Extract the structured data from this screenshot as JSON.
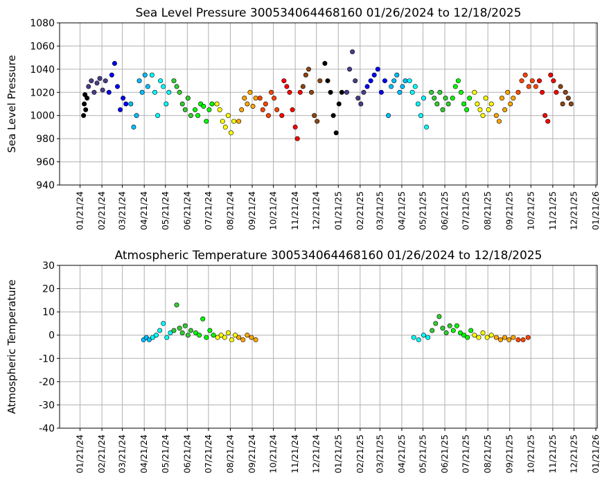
{
  "chart_data": [
    {
      "type": "scatter",
      "title": "Sea Level Pressure 300534064468160  01/26/2024 to 12/18/2025",
      "y_label": "Sea Level Pressure",
      "xlim": [
        "12/23/23",
        "01/23/26"
      ],
      "xticks": [
        "01/21/24",
        "02/21/24",
        "03/21/24",
        "04/21/24",
        "05/21/24",
        "06/21/24",
        "07/21/24",
        "08/21/24",
        "09/21/24",
        "10/21/24",
        "11/21/24",
        "12/21/24",
        "01/21/25",
        "02/21/25",
        "03/21/25",
        "04/21/25",
        "05/21/25",
        "06/21/25",
        "07/21/25",
        "08/21/25",
        "09/21/25",
        "10/21/25",
        "11/21/25",
        "12/21/25",
        "01/21/26"
      ],
      "ylim": [
        940,
        1080
      ],
      "yticks": [
        940,
        960,
        980,
        1000,
        1020,
        1040,
        1060,
        1080
      ],
      "grid": true,
      "series": [
        {
          "color": "#000000",
          "x": [
            "01/26/24",
            "01/27/24",
            "01/28/24",
            "01/29/24",
            "01/31/24"
          ],
          "values": [
            1000,
            1010,
            1018,
            1005,
            1015
          ]
        },
        {
          "color": "#483d8b",
          "x": [
            "02/02/24",
            "02/06/24",
            "02/10/24",
            "02/14/24",
            "02/18/24",
            "02/22/24",
            "02/26/24"
          ],
          "values": [
            1025,
            1030,
            1020,
            1028,
            1032,
            1022,
            1030
          ]
        },
        {
          "color": "#0000ff",
          "x": [
            "03/02/24",
            "03/06/24",
            "03/10/24",
            "03/14/24",
            "03/18/24",
            "03/22/24",
            "03/26/24"
          ],
          "values": [
            1020,
            1035,
            1045,
            1025,
            1005,
            1015,
            1010
          ]
        },
        {
          "color": "#00bfff",
          "x": [
            "04/02/24",
            "04/06/24",
            "04/10/24",
            "04/14/24",
            "04/18/24",
            "04/22/24",
            "04/26/24"
          ],
          "values": [
            1010,
            990,
            1000,
            1030,
            1020,
            1035,
            1025
          ]
        },
        {
          "color": "#00ffff",
          "x": [
            "05/02/24",
            "05/06/24",
            "05/10/24",
            "05/14/24",
            "05/18/24",
            "05/22/24",
            "05/26/24"
          ],
          "values": [
            1035,
            1020,
            1000,
            1030,
            1025,
            1010,
            1020
          ]
        },
        {
          "color": "#32cd32",
          "x": [
            "06/02/24",
            "06/06/24",
            "06/10/24",
            "06/14/24",
            "06/18/24",
            "06/22/24",
            "06/26/24"
          ],
          "values": [
            1030,
            1025,
            1020,
            1010,
            1005,
            1015,
            1000
          ]
        },
        {
          "color": "#00ff00",
          "x": [
            "07/02/24",
            "07/06/24",
            "07/10/24",
            "07/14/24",
            "07/18/24",
            "07/22/24",
            "07/26/24"
          ],
          "values": [
            1005,
            1000,
            1010,
            1008,
            995,
            1005,
            1010
          ]
        },
        {
          "color": "#ffff00",
          "x": [
            "08/02/24",
            "08/06/24",
            "08/10/24",
            "08/14/24",
            "08/18/24",
            "08/22/24",
            "08/26/24"
          ],
          "values": [
            1010,
            1005,
            995,
            990,
            1000,
            985,
            995
          ]
        },
        {
          "color": "#ffa500",
          "x": [
            "09/02/24",
            "09/06/24",
            "09/10/24",
            "09/14/24",
            "09/18/24",
            "09/22/24",
            "09/26/24"
          ],
          "values": [
            995,
            1005,
            1015,
            1010,
            1020,
            1008,
            1015
          ]
        },
        {
          "color": "#ff4500",
          "x": [
            "10/02/24",
            "10/06/24",
            "10/10/24",
            "10/14/24",
            "10/18/24",
            "10/22/24",
            "10/26/24"
          ],
          "values": [
            1015,
            1005,
            1010,
            1000,
            1020,
            1015,
            1005
          ]
        },
        {
          "color": "#ff0000",
          "x": [
            "11/02/24",
            "11/05/24",
            "11/09/24",
            "11/13/24",
            "11/17/24",
            "11/21/24",
            "11/24/24",
            "11/28/24"
          ],
          "values": [
            1000,
            1030,
            1025,
            1020,
            1005,
            990,
            980,
            1020
          ]
        },
        {
          "color": "#8b4513",
          "x": [
            "12/02/24",
            "12/06/24",
            "12/10/24",
            "12/14/24",
            "12/18/24",
            "12/22/24",
            "12/26/24"
          ],
          "values": [
            1025,
            1035,
            1040,
            1020,
            1000,
            995,
            1030
          ]
        },
        {
          "color": "#000000",
          "x": [
            "01/02/25",
            "01/06/25",
            "01/10/25",
            "01/14/25",
            "01/18/25",
            "01/22/25",
            "01/26/25"
          ],
          "values": [
            1045,
            1030,
            1020,
            1000,
            985,
            1010,
            1020
          ]
        },
        {
          "color": "#483d8b",
          "x": [
            "02/02/25",
            "02/06/25",
            "02/10/25",
            "02/14/25",
            "02/18/25",
            "02/22/25",
            "02/26/25"
          ],
          "values": [
            1020,
            1040,
            1055,
            1030,
            1015,
            1010,
            1020
          ]
        },
        {
          "color": "#0000ff",
          "x": [
            "03/03/25",
            "03/08/25",
            "03/13/25",
            "03/18/25",
            "03/23/25",
            "03/28/25"
          ],
          "values": [
            1025,
            1030,
            1035,
            1040,
            1020,
            1030
          ]
        },
        {
          "color": "#00bfff",
          "x": [
            "04/02/25",
            "04/06/25",
            "04/10/25",
            "04/14/25",
            "04/18/25",
            "04/22/25",
            "04/26/25"
          ],
          "values": [
            1000,
            1025,
            1030,
            1035,
            1020,
            1025,
            1030
          ]
        },
        {
          "color": "#00ffff",
          "x": [
            "05/02/25",
            "05/06/25",
            "05/10/25",
            "05/14/25",
            "05/18/25",
            "05/22/25",
            "05/26/25"
          ],
          "values": [
            1030,
            1020,
            1025,
            1010,
            1000,
            1015,
            990
          ]
        },
        {
          "color": "#32cd32",
          "x": [
            "06/02/25",
            "06/06/25",
            "06/10/25",
            "06/14/25",
            "06/18/25",
            "06/22/25",
            "06/26/25"
          ],
          "values": [
            1020,
            1015,
            1010,
            1020,
            1005,
            1015,
            1010
          ]
        },
        {
          "color": "#00ff00",
          "x": [
            "07/02/25",
            "07/06/25",
            "07/10/25",
            "07/14/25",
            "07/18/25",
            "07/22/25",
            "07/26/25"
          ],
          "values": [
            1015,
            1025,
            1030,
            1020,
            1010,
            1005,
            1015
          ]
        },
        {
          "color": "#ffff00",
          "x": [
            "08/02/25",
            "08/06/25",
            "08/10/25",
            "08/14/25",
            "08/18/25",
            "08/22/25",
            "08/26/25"
          ],
          "values": [
            1020,
            1010,
            1005,
            1000,
            1015,
            1005,
            1010
          ]
        },
        {
          "color": "#ffa500",
          "x": [
            "09/02/25",
            "09/06/25",
            "09/10/25",
            "09/14/25",
            "09/18/25",
            "09/22/25",
            "09/26/25"
          ],
          "values": [
            1000,
            995,
            1015,
            1005,
            1020,
            1010,
            1015
          ]
        },
        {
          "color": "#ff4500",
          "x": [
            "10/03/25",
            "10/08/25",
            "10/13/25",
            "10/18/25",
            "10/23/25",
            "10/28/25"
          ],
          "values": [
            1020,
            1030,
            1035,
            1025,
            1030,
            1025
          ]
        },
        {
          "color": "#ff0000",
          "x": [
            "11/02/25",
            "11/06/25",
            "11/10/25",
            "11/14/25",
            "11/18/25",
            "11/22/25",
            "11/26/25"
          ],
          "values": [
            1030,
            1020,
            1000,
            995,
            1035,
            1030,
            1020
          ]
        },
        {
          "color": "#8b4513",
          "x": [
            "12/02/25",
            "12/05/25",
            "12/09/25",
            "12/13/25",
            "12/17/25"
          ],
          "values": [
            1025,
            1010,
            1020,
            1015,
            1010
          ]
        }
      ]
    },
    {
      "type": "scatter",
      "title": "Atmospheric Temperature 300534064468160  01/26/2024 to 12/18/2025",
      "y_label": "Atmospheric Temperature",
      "xlim": [
        "12/23/23",
        "01/23/26"
      ],
      "xticks": [
        "01/21/24",
        "02/21/24",
        "03/21/24",
        "04/21/24",
        "05/21/24",
        "06/21/24",
        "07/21/24",
        "08/21/24",
        "09/21/24",
        "10/21/24",
        "11/21/24",
        "12/21/24",
        "01/21/25",
        "02/21/25",
        "03/21/25",
        "04/21/25",
        "05/21/25",
        "06/21/25",
        "07/21/25",
        "08/21/25",
        "09/21/25",
        "10/21/25",
        "11/21/25",
        "12/21/25",
        "01/21/26"
      ],
      "ylim": [
        -40,
        30
      ],
      "yticks": [
        -40,
        -30,
        -20,
        -10,
        0,
        10,
        20,
        30
      ],
      "grid": true,
      "series": [
        {
          "color": "#00bfff",
          "x": [
            "04/20/24",
            "04/24/24",
            "04/28/24"
          ],
          "values": [
            -2,
            -1,
            -2
          ]
        },
        {
          "color": "#00ffff",
          "x": [
            "05/03/24",
            "05/08/24",
            "05/13/24",
            "05/18/24",
            "05/23/24",
            "05/28/24"
          ],
          "values": [
            -1,
            0,
            2,
            5,
            -1,
            1
          ]
        },
        {
          "color": "#32cd32",
          "x": [
            "06/02/24",
            "06/06/24",
            "06/10/24",
            "06/14/24",
            "06/18/24",
            "06/22/24",
            "06/26/24"
          ],
          "values": [
            2,
            13,
            3,
            1,
            4,
            0,
            2
          ]
        },
        {
          "color": "#00ff00",
          "x": [
            "07/03/24",
            "07/08/24",
            "07/13/24",
            "07/18/24",
            "07/23/24",
            "07/28/24"
          ],
          "values": [
            1,
            0,
            7,
            -1,
            2,
            0
          ]
        },
        {
          "color": "#ffff00",
          "x": [
            "08/03/24",
            "08/08/24",
            "08/13/24",
            "08/18/24",
            "08/23/24",
            "08/28/24"
          ],
          "values": [
            -1,
            0,
            -1,
            1,
            -2,
            0
          ]
        },
        {
          "color": "#ffa500",
          "x": [
            "09/02/24",
            "09/08/24",
            "09/14/24",
            "09/20/24",
            "09/26/24"
          ],
          "values": [
            -1,
            -2,
            0,
            -1,
            -2
          ]
        },
        {
          "color": "#00ffff",
          "x": [
            "05/08/25",
            "05/15/25",
            "05/22/25",
            "05/28/25"
          ],
          "values": [
            -1,
            -2,
            0,
            -1
          ]
        },
        {
          "color": "#32cd32",
          "x": [
            "06/03/25",
            "06/08/25",
            "06/13/25",
            "06/18/25",
            "06/23/25",
            "06/28/25"
          ],
          "values": [
            2,
            5,
            8,
            3,
            1,
            4
          ]
        },
        {
          "color": "#00ff00",
          "x": [
            "07/03/25",
            "07/08/25",
            "07/13/25",
            "07/18/25",
            "07/23/25",
            "07/28/25"
          ],
          "values": [
            2,
            4,
            1,
            0,
            -1,
            2
          ]
        },
        {
          "color": "#ffff00",
          "x": [
            "08/02/25",
            "08/08/25",
            "08/14/25",
            "08/20/25",
            "08/26/25"
          ],
          "values": [
            0,
            -1,
            1,
            -1,
            0
          ]
        },
        {
          "color": "#ffa500",
          "x": [
            "09/02/25",
            "09/08/25",
            "09/14/25",
            "09/20/25",
            "09/26/25"
          ],
          "values": [
            -1,
            -2,
            -1,
            -2,
            -1
          ]
        },
        {
          "color": "#ff4500",
          "x": [
            "10/03/25",
            "10/10/25",
            "10/17/25"
          ],
          "values": [
            -2,
            -2,
            -1
          ]
        }
      ]
    }
  ]
}
